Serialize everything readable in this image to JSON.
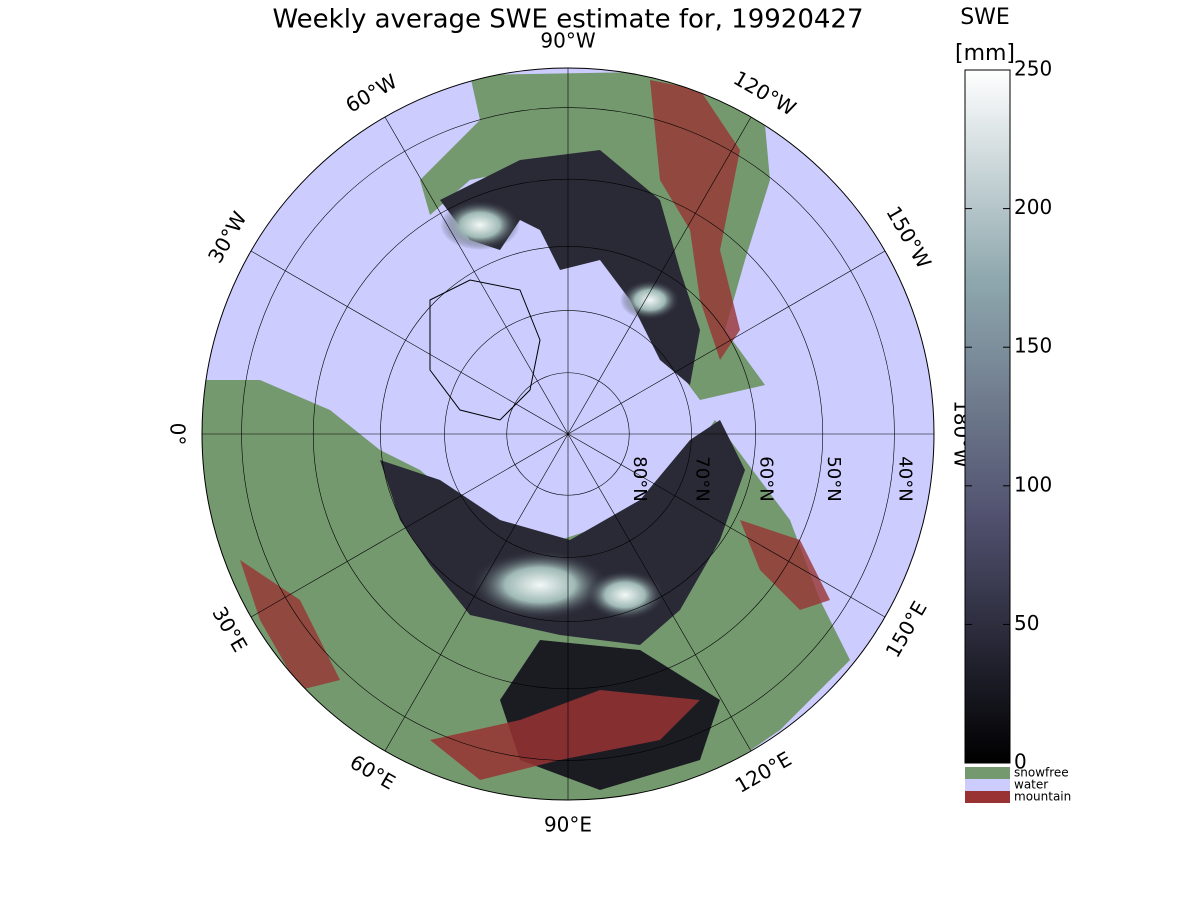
{
  "title": "Weekly average SWE estimate for, 19920427",
  "colorbar": {
    "label": "SWE",
    "unit": "[mm]",
    "lim": [
      0,
      250
    ],
    "ticks": [
      0,
      50,
      100,
      150,
      200,
      250
    ]
  },
  "legend": [
    {
      "name": "snowfree",
      "color": "#75996f"
    },
    {
      "name": "water",
      "color": "#ccccff"
    },
    {
      "name": "mountain",
      "color": "#993333"
    }
  ],
  "meridians": [
    {
      "value": -90,
      "label": "90°W"
    },
    {
      "value": -120,
      "label": "120°W"
    },
    {
      "value": -150,
      "label": "150°W"
    },
    {
      "value": -180,
      "label": "180°W"
    },
    {
      "value": 150,
      "label": "150°E"
    },
    {
      "value": 120,
      "label": "120°E"
    },
    {
      "value": 90,
      "label": "90°E"
    },
    {
      "value": 60,
      "label": "60°E"
    },
    {
      "value": 30,
      "label": "30°E"
    },
    {
      "value": 0,
      "label": "0°"
    },
    {
      "value": -30,
      "label": "30°W"
    },
    {
      "value": -60,
      "label": "60°W"
    }
  ],
  "parallels": [
    {
      "value": 80,
      "label": "80°N"
    },
    {
      "value": 70,
      "label": "70°N"
    },
    {
      "value": 60,
      "label": "60°N"
    },
    {
      "value": 50,
      "label": "50°N"
    },
    {
      "value": 40,
      "label": "40°N"
    }
  ]
}
